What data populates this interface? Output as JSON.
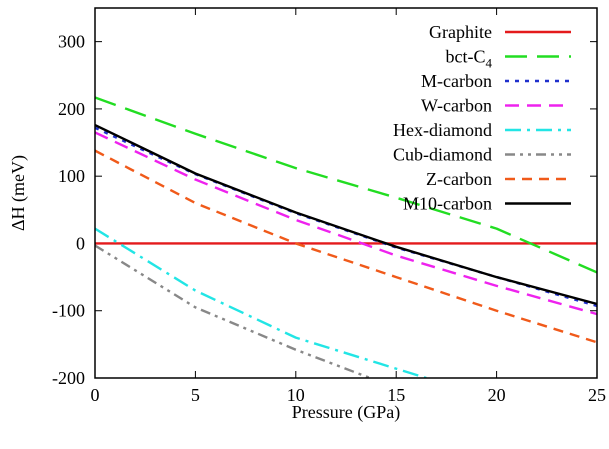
{
  "chart_data": {
    "type": "line",
    "xlabel": "Pressure (GPa)",
    "ylabel": "ΔH (meV)",
    "xlim": [
      0,
      25
    ],
    "ylim": [
      -200,
      350
    ],
    "xticks": [
      0,
      5,
      10,
      15,
      20,
      25
    ],
    "yticks": [
      -200,
      -100,
      0,
      100,
      200,
      300
    ],
    "xtick_labels": [
      "0",
      "5",
      "10",
      "15",
      "20",
      "25"
    ],
    "ytick_labels": [
      "-200",
      "-100",
      "0",
      "100",
      "200",
      "300"
    ],
    "grid": false,
    "legend_position": "top-right",
    "series": [
      {
        "name": "Graphite",
        "color": "#e41a1c",
        "dash": "solid",
        "x": [
          0,
          25
        ],
        "y": [
          0,
          0
        ]
      },
      {
        "name": "bct-C",
        "name_sub": "4",
        "color": "#22dd22",
        "dash": "long-dash",
        "x": [
          0,
          5,
          10,
          15,
          20,
          25
        ],
        "y": [
          217,
          163,
          112,
          68,
          22,
          -43
        ]
      },
      {
        "name": "M-carbon",
        "color": "#1f2fcc",
        "dash": "dotted",
        "x": [
          0,
          5,
          10,
          15,
          20,
          25
        ],
        "y": [
          172,
          103,
          45,
          -6,
          -50,
          -93
        ]
      },
      {
        "name": "W-carbon",
        "color": "#ee22ee",
        "dash": "dashed",
        "x": [
          0,
          5,
          10,
          15,
          20,
          25
        ],
        "y": [
          165,
          95,
          35,
          -18,
          -63,
          -105
        ]
      },
      {
        "name": "Hex-diamond",
        "color": "#22e5e5",
        "dash": "dash-dot",
        "x": [
          0,
          5,
          10,
          16.5
        ],
        "y": [
          22,
          -70,
          -140,
          -200
        ]
      },
      {
        "name": "Cub-diamond",
        "color": "#888888",
        "dash": "dash-dot-dot",
        "x": [
          0,
          5,
          10,
          13.7
        ],
        "y": [
          -3,
          -95,
          -158,
          -200
        ]
      },
      {
        "name": "Z-carbon",
        "color": "#f05a1a",
        "dash": "short-dash",
        "x": [
          0,
          5,
          10,
          15,
          20,
          25
        ],
        "y": [
          138,
          60,
          0,
          -50,
          -100,
          -147
        ]
      },
      {
        "name": "M10-carbon",
        "color": "#000000",
        "dash": "solid",
        "x": [
          0,
          5,
          10,
          15,
          20,
          25
        ],
        "y": [
          176,
          104,
          46,
          -5,
          -50,
          -90
        ]
      }
    ]
  }
}
